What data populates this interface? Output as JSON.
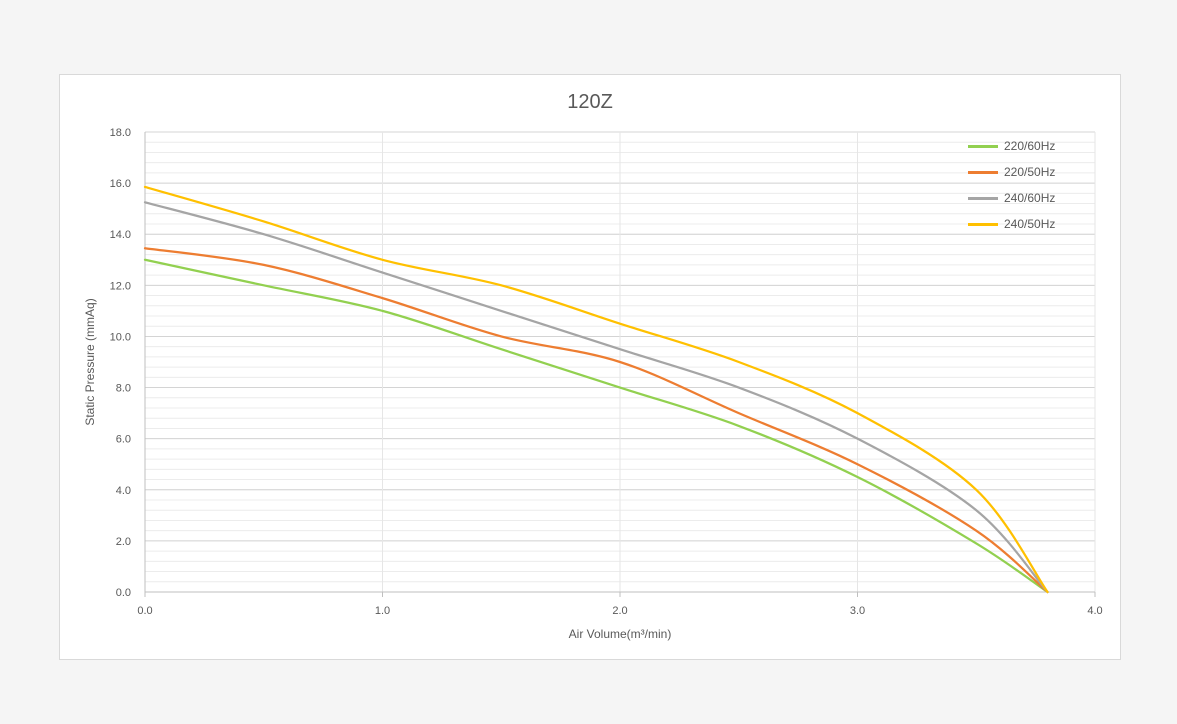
{
  "chart_data": {
    "type": "line",
    "title": "120Z",
    "xlabel": "Air Volume(m³/min)",
    "ylabel": "Static Pressure (mmAq)",
    "xlim": [
      0,
      4
    ],
    "ylim": [
      0,
      18
    ],
    "x_ticks": [
      "0.0",
      "1.0",
      "2.0",
      "3.0",
      "4.0"
    ],
    "y_ticks": [
      "0.0",
      "2.0",
      "4.0",
      "6.0",
      "8.0",
      "10.0",
      "12.0",
      "14.0",
      "16.0",
      "18.0"
    ],
    "grid": true,
    "legend_position": "top-right",
    "series": [
      {
        "name": "220/60Hz",
        "color": "#92d050",
        "points": [
          [
            0,
            13.0
          ],
          [
            0.5,
            12.0
          ],
          [
            1.0,
            11.0
          ],
          [
            1.5,
            9.5
          ],
          [
            2.0,
            8.0
          ],
          [
            2.5,
            6.5
          ],
          [
            3.0,
            4.5
          ],
          [
            3.5,
            1.9
          ],
          [
            3.8,
            0.0
          ]
        ]
      },
      {
        "name": "220/50Hz",
        "color": "#ed7d31",
        "points": [
          [
            0,
            13.45
          ],
          [
            0.5,
            12.8
          ],
          [
            1.0,
            11.5
          ],
          [
            1.5,
            10.0
          ],
          [
            2.0,
            9.0
          ],
          [
            2.5,
            7.0
          ],
          [
            3.0,
            5.0
          ],
          [
            3.5,
            2.4
          ],
          [
            3.8,
            0.0
          ]
        ]
      },
      {
        "name": "240/60Hz",
        "color": "#a5a5a5",
        "points": [
          [
            0,
            15.25
          ],
          [
            0.5,
            14.0
          ],
          [
            1.0,
            12.5
          ],
          [
            1.5,
            11.0
          ],
          [
            2.0,
            9.5
          ],
          [
            2.5,
            8.0
          ],
          [
            3.0,
            6.0
          ],
          [
            3.5,
            3.2
          ],
          [
            3.8,
            0.0
          ]
        ]
      },
      {
        "name": "240/50Hz",
        "color": "#ffc000",
        "points": [
          [
            0,
            15.85
          ],
          [
            0.5,
            14.5
          ],
          [
            1.0,
            13.0
          ],
          [
            1.5,
            12.0
          ],
          [
            2.0,
            10.5
          ],
          [
            2.5,
            9.0
          ],
          [
            3.0,
            7.0
          ],
          [
            3.5,
            4.0
          ],
          [
            3.8,
            0.0
          ]
        ]
      }
    ]
  }
}
